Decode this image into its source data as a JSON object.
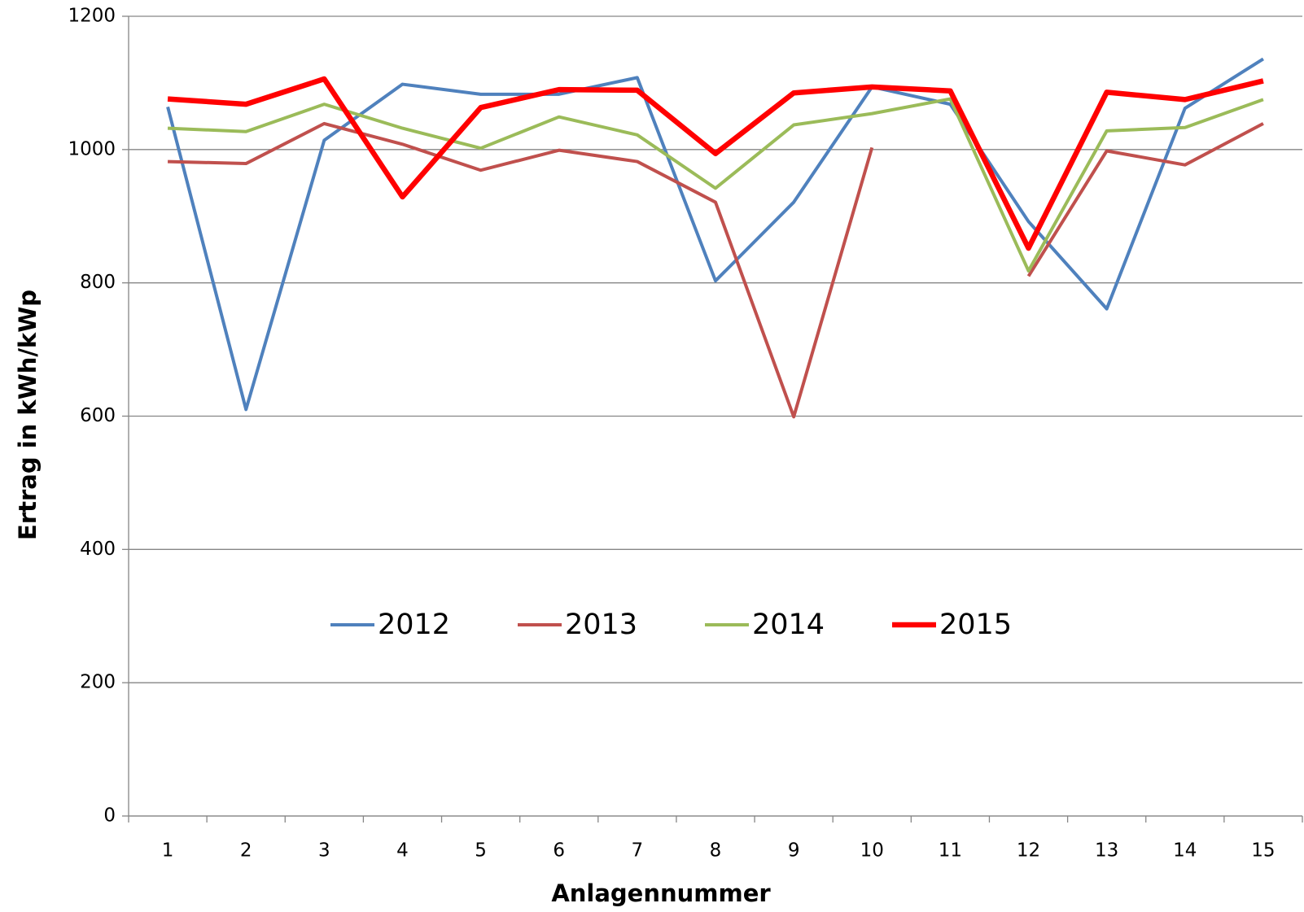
{
  "chart_data": {
    "type": "line",
    "x_label": "Anlagennummer",
    "y_label": "Ertrag in kWh/kWp",
    "categories": [
      "1",
      "2",
      "3",
      "4",
      "5",
      "6",
      "7",
      "8",
      "9",
      "10",
      "11",
      "12",
      "13",
      "14",
      "15"
    ],
    "series": [
      {
        "name": "2012",
        "color": "#4f81bd",
        "values": [
          1064,
          610,
          1014,
          1098,
          1083,
          1083,
          1108,
          803,
          921,
          1094,
          1068,
          892,
          761,
          1062,
          1136
        ]
      },
      {
        "name": "2013",
        "color": "#c0504d",
        "values": [
          982,
          979,
          1039,
          1008,
          969,
          999,
          982,
          921,
          599,
          1003,
          null,
          810,
          998,
          977,
          1039
        ]
      },
      {
        "name": "2014",
        "color": "#9bbb59",
        "values": [
          1032,
          1027,
          1068,
          1032,
          1002,
          1049,
          1022,
          942,
          1037,
          1054,
          1076,
          818,
          1028,
          1033,
          1075
        ]
      },
      {
        "name": "2015",
        "color": "#ff0000",
        "values": [
          1076,
          1068,
          1106,
          929,
          1063,
          1090,
          1089,
          994,
          1085,
          1094,
          1088,
          852,
          1086,
          1075,
          1103
        ]
      }
    ],
    "ylim": [
      0,
      1200
    ],
    "yticks": [
      0,
      200,
      400,
      600,
      800,
      1000,
      1200
    ],
    "grid": true,
    "legend": "inside-bottom-center"
  }
}
